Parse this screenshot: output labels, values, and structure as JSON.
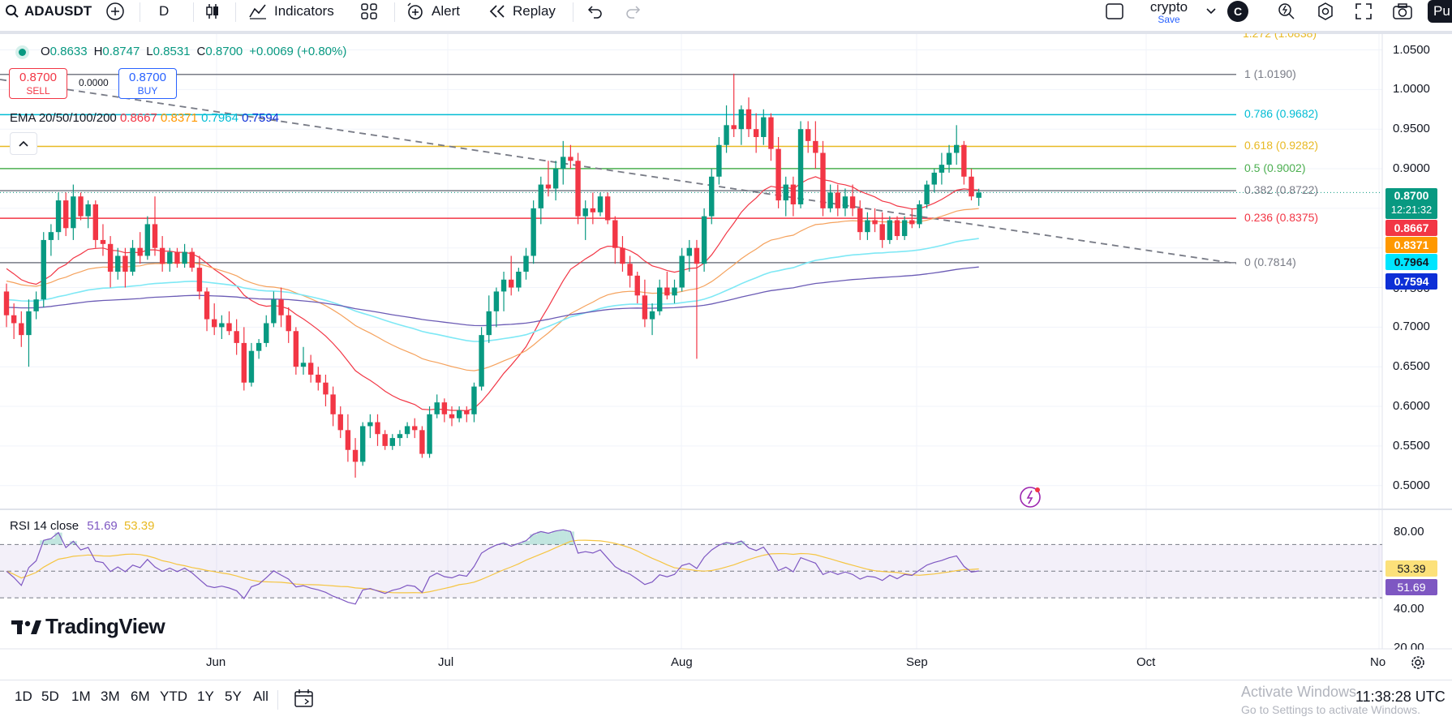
{
  "toolbar": {
    "symbol": "ADAUSDT",
    "interval": "D",
    "indicators_label": "Indicators",
    "alert_label": "Alert",
    "replay_label": "Replay",
    "layout_name": "crypto",
    "layout_status": "Save",
    "avatar_letter": "C",
    "publish_label": "Pu"
  },
  "ohlc": {
    "open_label": "O",
    "open": "0.8633",
    "high_label": "H",
    "high": "0.8747",
    "low_label": "L",
    "low": "0.8531",
    "close_label": "C",
    "close": "0.8700",
    "change": "+0.0069 (+0.80%)"
  },
  "trade": {
    "sell_price": "0.8700",
    "sell_label": "SELL",
    "spread": "0.0000",
    "buy_price": "0.8700",
    "buy_label": "BUY"
  },
  "ema_legend": {
    "name": "EMA 20/50/100/200",
    "v20": "0.8667",
    "v50": "0.8371",
    "v100": "0.7964",
    "v200": "0.7594"
  },
  "fib_levels": [
    {
      "label": "1 (1.0190)",
      "value": 1.019,
      "color": "#787b86"
    },
    {
      "label": "0.786 (0.9682)",
      "value": 0.9682,
      "color": "#00bcd4"
    },
    {
      "label": "0.618 (0.9282)",
      "value": 0.9282,
      "color": "#e8b923"
    },
    {
      "label": "0.5 (0.9002)",
      "value": 0.9002,
      "color": "#4caf50"
    },
    {
      "label": "0.382 (0.8722)",
      "value": 0.8722,
      "color": "#787b86"
    },
    {
      "label": "0.236 (0.8375)",
      "value": 0.8375,
      "color": "#f23645"
    },
    {
      "label": "0 (0.7814)",
      "value": 0.7814,
      "color": "#787b86"
    }
  ],
  "fib_top_partial": "1.272 (1.0838)",
  "price_scale": [
    "1.0500",
    "1.0000",
    "0.9500",
    "0.9000",
    "0.7000",
    "0.6500",
    "0.6000",
    "0.5500",
    "0.5000"
  ],
  "price_tags": {
    "last_price": "0.8700",
    "countdown": "12:21:32",
    "ema20": "0.8667",
    "ema20_color": "#f23645",
    "ema50": "0.8371",
    "ema50_color": "#ff9800",
    "ema100": "0.7964",
    "ema100_color": "#00e5ff",
    "ema200": "0.7594",
    "ema200_color": "#0d2fd6",
    "partial_label": "0.7500"
  },
  "rsi": {
    "name": "RSI 14 close",
    "value": "51.69",
    "ma_value": "53.39",
    "scale": [
      "80.00",
      "40.00",
      "20.00"
    ]
  },
  "time_axis": [
    "Jun",
    "Jul",
    "Aug",
    "Sep",
    "Oct",
    "No"
  ],
  "bottom": {
    "ranges": [
      "1D",
      "5D",
      "1M",
      "3M",
      "6M",
      "YTD",
      "1Y",
      "5Y",
      "All"
    ],
    "clock": "11:38:28 UTC"
  },
  "watermark": {
    "brand": "TradingView",
    "activate_title": "Activate Windows",
    "activate_sub": "Go to Settings to activate Windows."
  },
  "colors": {
    "up": "#089981",
    "down": "#f23645",
    "ema20": "#f23645",
    "ema50": "#f5a25d",
    "ema100": "#7ee8f5",
    "ema200": "#6b5bb5",
    "rsi": "#7e57c2",
    "rsi_ma": "#f5c542"
  },
  "chart_data": {
    "type": "candlestick",
    "symbol": "ADAUSDT",
    "interval": "1D",
    "ylim": [
      0.47,
      1.07
    ],
    "candles": [
      [
        0.745,
        0.755,
        0.7,
        0.715
      ],
      [
        0.715,
        0.73,
        0.685,
        0.705
      ],
      [
        0.705,
        0.72,
        0.675,
        0.69
      ],
      [
        0.69,
        0.735,
        0.65,
        0.72
      ],
      [
        0.72,
        0.745,
        0.71,
        0.735
      ],
      [
        0.735,
        0.82,
        0.725,
        0.81
      ],
      [
        0.81,
        0.83,
        0.79,
        0.82
      ],
      [
        0.82,
        0.87,
        0.81,
        0.86
      ],
      [
        0.86,
        0.87,
        0.815,
        0.825
      ],
      [
        0.825,
        0.88,
        0.81,
        0.865
      ],
      [
        0.865,
        0.87,
        0.835,
        0.84
      ],
      [
        0.84,
        0.86,
        0.825,
        0.855
      ],
      [
        0.855,
        0.86,
        0.8,
        0.81
      ],
      [
        0.81,
        0.83,
        0.79,
        0.805
      ],
      [
        0.805,
        0.815,
        0.75,
        0.77
      ],
      [
        0.77,
        0.8,
        0.76,
        0.79
      ],
      [
        0.79,
        0.8,
        0.75,
        0.77
      ],
      [
        0.77,
        0.81,
        0.765,
        0.8
      ],
      [
        0.8,
        0.82,
        0.78,
        0.79
      ],
      [
        0.79,
        0.84,
        0.785,
        0.83
      ],
      [
        0.83,
        0.865,
        0.79,
        0.8
      ],
      [
        0.8,
        0.815,
        0.77,
        0.78
      ],
      [
        0.78,
        0.8,
        0.77,
        0.795
      ],
      [
        0.795,
        0.8,
        0.775,
        0.78
      ],
      [
        0.78,
        0.805,
        0.775,
        0.795
      ],
      [
        0.795,
        0.8,
        0.77,
        0.775
      ],
      [
        0.775,
        0.79,
        0.735,
        0.745
      ],
      [
        0.745,
        0.75,
        0.695,
        0.71
      ],
      [
        0.71,
        0.73,
        0.69,
        0.7
      ],
      [
        0.7,
        0.715,
        0.685,
        0.705
      ],
      [
        0.705,
        0.72,
        0.69,
        0.695
      ],
      [
        0.695,
        0.71,
        0.665,
        0.68
      ],
      [
        0.68,
        0.7,
        0.62,
        0.63
      ],
      [
        0.63,
        0.68,
        0.625,
        0.67
      ],
      [
        0.67,
        0.685,
        0.66,
        0.68
      ],
      [
        0.68,
        0.715,
        0.675,
        0.705
      ],
      [
        0.705,
        0.745,
        0.7,
        0.735
      ],
      [
        0.735,
        0.75,
        0.7,
        0.715
      ],
      [
        0.715,
        0.725,
        0.68,
        0.695
      ],
      [
        0.695,
        0.7,
        0.64,
        0.65
      ],
      [
        0.65,
        0.675,
        0.64,
        0.655
      ],
      [
        0.655,
        0.665,
        0.63,
        0.64
      ],
      [
        0.64,
        0.65,
        0.62,
        0.63
      ],
      [
        0.63,
        0.64,
        0.6,
        0.615
      ],
      [
        0.615,
        0.625,
        0.575,
        0.59
      ],
      [
        0.59,
        0.6,
        0.56,
        0.57
      ],
      [
        0.57,
        0.59,
        0.53,
        0.545
      ],
      [
        0.545,
        0.56,
        0.51,
        0.53
      ],
      [
        0.53,
        0.58,
        0.525,
        0.575
      ],
      [
        0.575,
        0.59,
        0.56,
        0.58
      ],
      [
        0.58,
        0.59,
        0.55,
        0.565
      ],
      [
        0.565,
        0.57,
        0.545,
        0.55
      ],
      [
        0.55,
        0.565,
        0.545,
        0.56
      ],
      [
        0.56,
        0.57,
        0.55,
        0.565
      ],
      [
        0.565,
        0.58,
        0.56,
        0.575
      ],
      [
        0.575,
        0.585,
        0.56,
        0.57
      ],
      [
        0.57,
        0.575,
        0.535,
        0.54
      ],
      [
        0.54,
        0.6,
        0.535,
        0.59
      ],
      [
        0.59,
        0.615,
        0.585,
        0.605
      ],
      [
        0.605,
        0.61,
        0.58,
        0.59
      ],
      [
        0.59,
        0.6,
        0.575,
        0.585
      ],
      [
        0.585,
        0.6,
        0.58,
        0.595
      ],
      [
        0.595,
        0.6,
        0.58,
        0.59
      ],
      [
        0.59,
        0.63,
        0.58,
        0.625
      ],
      [
        0.625,
        0.7,
        0.62,
        0.69
      ],
      [
        0.69,
        0.74,
        0.68,
        0.72
      ],
      [
        0.72,
        0.75,
        0.7,
        0.745
      ],
      [
        0.745,
        0.77,
        0.72,
        0.76
      ],
      [
        0.76,
        0.79,
        0.74,
        0.75
      ],
      [
        0.75,
        0.775,
        0.745,
        0.77
      ],
      [
        0.77,
        0.8,
        0.76,
        0.79
      ],
      [
        0.79,
        0.86,
        0.78,
        0.85
      ],
      [
        0.85,
        0.89,
        0.83,
        0.88
      ],
      [
        0.88,
        0.91,
        0.865,
        0.875
      ],
      [
        0.875,
        0.91,
        0.86,
        0.9
      ],
      [
        0.9,
        0.935,
        0.88,
        0.915
      ],
      [
        0.915,
        0.93,
        0.9,
        0.91
      ],
      [
        0.91,
        0.92,
        0.83,
        0.84
      ],
      [
        0.84,
        0.86,
        0.81,
        0.85
      ],
      [
        0.85,
        0.87,
        0.83,
        0.845
      ],
      [
        0.845,
        0.87,
        0.84,
        0.865
      ],
      [
        0.865,
        0.87,
        0.83,
        0.835
      ],
      [
        0.835,
        0.84,
        0.78,
        0.8
      ],
      [
        0.8,
        0.815,
        0.77,
        0.78
      ],
      [
        0.78,
        0.79,
        0.75,
        0.765
      ],
      [
        0.765,
        0.77,
        0.73,
        0.74
      ],
      [
        0.74,
        0.76,
        0.7,
        0.71
      ],
      [
        0.71,
        0.73,
        0.69,
        0.72
      ],
      [
        0.72,
        0.76,
        0.715,
        0.75
      ],
      [
        0.75,
        0.77,
        0.735,
        0.74
      ],
      [
        0.74,
        0.76,
        0.73,
        0.75
      ],
      [
        0.75,
        0.8,
        0.745,
        0.79
      ],
      [
        0.79,
        0.81,
        0.77,
        0.8
      ],
      [
        0.8,
        0.81,
        0.66,
        0.78
      ],
      [
        0.78,
        0.85,
        0.77,
        0.84
      ],
      [
        0.84,
        0.9,
        0.83,
        0.89
      ],
      [
        0.89,
        0.94,
        0.88,
        0.93
      ],
      [
        0.93,
        0.98,
        0.92,
        0.955
      ],
      [
        0.955,
        1.02,
        0.94,
        0.95
      ],
      [
        0.95,
        0.98,
        0.93,
        0.975
      ],
      [
        0.975,
        0.99,
        0.94,
        0.95
      ],
      [
        0.95,
        0.97,
        0.92,
        0.94
      ],
      [
        0.94,
        0.975,
        0.93,
        0.965
      ],
      [
        0.965,
        0.97,
        0.91,
        0.925
      ],
      [
        0.925,
        0.94,
        0.85,
        0.86
      ],
      [
        0.86,
        0.89,
        0.84,
        0.88
      ],
      [
        0.88,
        0.89,
        0.84,
        0.855
      ],
      [
        0.855,
        0.96,
        0.85,
        0.95
      ],
      [
        0.95,
        0.96,
        0.92,
        0.935
      ],
      [
        0.935,
        0.96,
        0.9,
        0.92
      ],
      [
        0.92,
        0.935,
        0.84,
        0.85
      ],
      [
        0.85,
        0.88,
        0.845,
        0.87
      ],
      [
        0.87,
        0.88,
        0.84,
        0.85
      ],
      [
        0.85,
        0.875,
        0.84,
        0.865
      ],
      [
        0.865,
        0.88,
        0.84,
        0.85
      ],
      [
        0.85,
        0.86,
        0.81,
        0.82
      ],
      [
        0.82,
        0.845,
        0.81,
        0.835
      ],
      [
        0.835,
        0.85,
        0.82,
        0.83
      ],
      [
        0.83,
        0.845,
        0.8,
        0.81
      ],
      [
        0.81,
        0.84,
        0.805,
        0.835
      ],
      [
        0.835,
        0.84,
        0.81,
        0.815
      ],
      [
        0.815,
        0.84,
        0.81,
        0.835
      ],
      [
        0.835,
        0.85,
        0.825,
        0.83
      ],
      [
        0.83,
        0.86,
        0.825,
        0.855
      ],
      [
        0.855,
        0.885,
        0.85,
        0.88
      ],
      [
        0.88,
        0.9,
        0.87,
        0.895
      ],
      [
        0.895,
        0.92,
        0.88,
        0.905
      ],
      [
        0.905,
        0.93,
        0.895,
        0.92
      ],
      [
        0.92,
        0.955,
        0.905,
        0.93
      ],
      [
        0.93,
        0.935,
        0.88,
        0.89
      ],
      [
        0.89,
        0.9,
        0.86,
        0.865
      ],
      [
        0.8633,
        0.8747,
        0.8531,
        0.87
      ]
    ]
  }
}
